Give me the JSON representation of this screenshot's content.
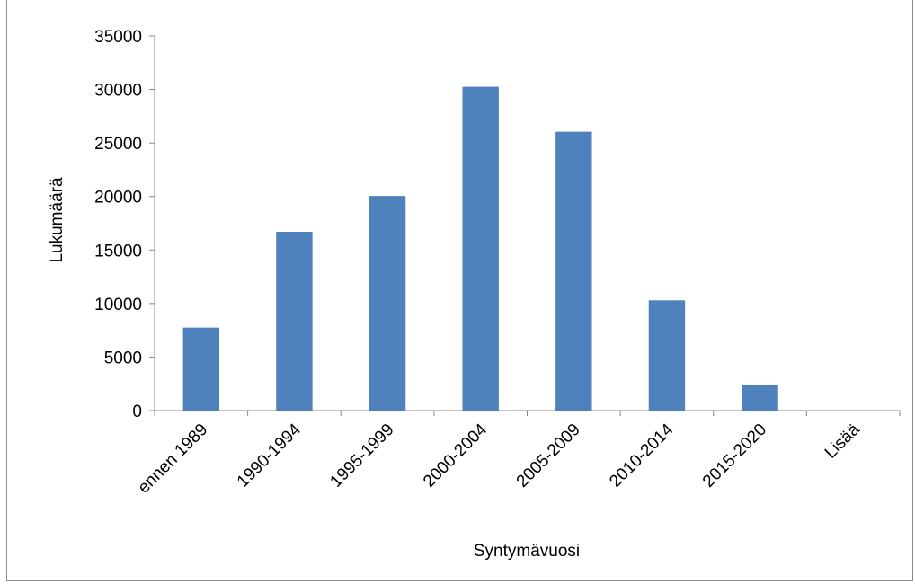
{
  "chart_data": {
    "type": "bar",
    "categories": [
      "ennen 1989",
      "1990-1994",
      "1995-1999",
      "2000-2004",
      "2005-2009",
      "2010-2014",
      "2015-2020",
      "Lisää"
    ],
    "values": [
      7750,
      16700,
      20050,
      30250,
      26050,
      10300,
      2350,
      0
    ],
    "xlabel": "Syntymävuosi",
    "ylabel": "Lukumäärä",
    "ylim": [
      0,
      35000
    ],
    "yticks": [
      0,
      5000,
      10000,
      15000,
      20000,
      25000,
      30000,
      35000
    ],
    "grid": false,
    "legend": "none",
    "bar_color": "#4f81bd",
    "axis_color": "#868686"
  }
}
